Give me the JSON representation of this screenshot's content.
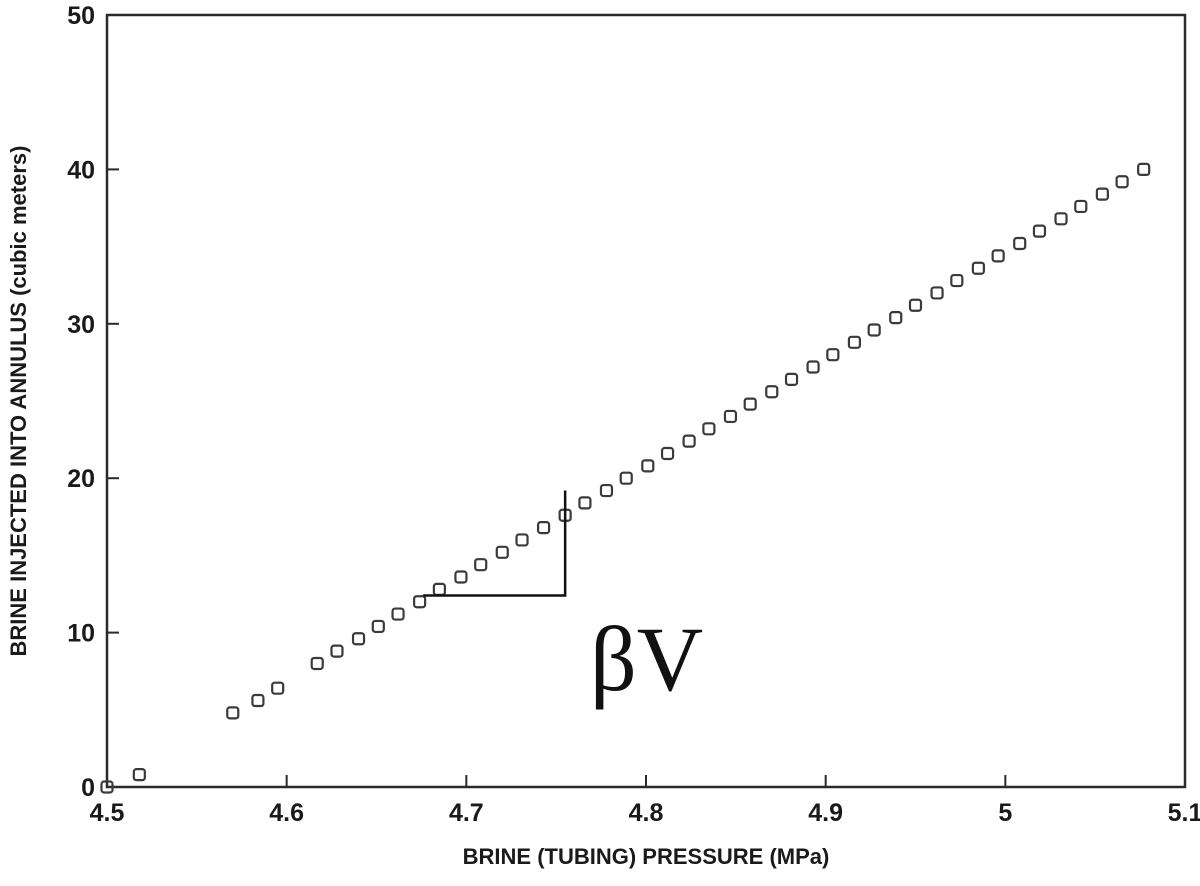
{
  "chart_data": {
    "type": "scatter",
    "xlabel": "BRINE (TUBING) PRESSURE (MPa)",
    "ylabel": "BRINE INJECTED INTO ANNULUS (cubic meters)",
    "xlim": [
      4.5,
      5.1
    ],
    "ylim": [
      0,
      50
    ],
    "x_ticks": [
      "4.5",
      "4.6",
      "4.7",
      "4.8",
      "4.9",
      "5",
      "5.1"
    ],
    "y_ticks": [
      "0",
      "10",
      "20",
      "30",
      "40",
      "50"
    ],
    "grid": false,
    "marker": "open-square",
    "series": [
      {
        "x": [
          4.5,
          4.518,
          4.57,
          4.584,
          4.595,
          4.617,
          4.628,
          4.64,
          4.651,
          4.662,
          4.674,
          4.685,
          4.697,
          4.708,
          4.72,
          4.731,
          4.743,
          4.755,
          4.766,
          4.778,
          4.789,
          4.801,
          4.812,
          4.824,
          4.835,
          4.847,
          4.858,
          4.87,
          4.881,
          4.893,
          4.904,
          4.916,
          4.927,
          4.939,
          4.95,
          4.962,
          4.973,
          4.985,
          4.996,
          5.008,
          5.019,
          5.031,
          5.042,
          5.054,
          5.065,
          5.077
        ],
        "y": [
          0.0,
          0.8,
          4.8,
          5.6,
          6.4,
          8.0,
          8.8,
          9.6,
          10.4,
          11.2,
          12.0,
          12.8,
          13.6,
          14.4,
          15.2,
          16.0,
          16.8,
          17.6,
          18.4,
          19.2,
          20.0,
          20.8,
          21.6,
          22.4,
          23.2,
          24.0,
          24.8,
          25.6,
          26.4,
          27.2,
          28.0,
          28.8,
          29.6,
          30.4,
          31.2,
          32.0,
          32.8,
          33.6,
          34.4,
          35.2,
          36.0,
          36.8,
          37.6,
          38.4,
          39.2,
          40.0
        ]
      }
    ],
    "annotation": {
      "text": "βV",
      "triangle": {
        "x_start": 4.676,
        "x_end": 4.755,
        "y_low": 12.4,
        "y_high": 19.2
      }
    }
  }
}
